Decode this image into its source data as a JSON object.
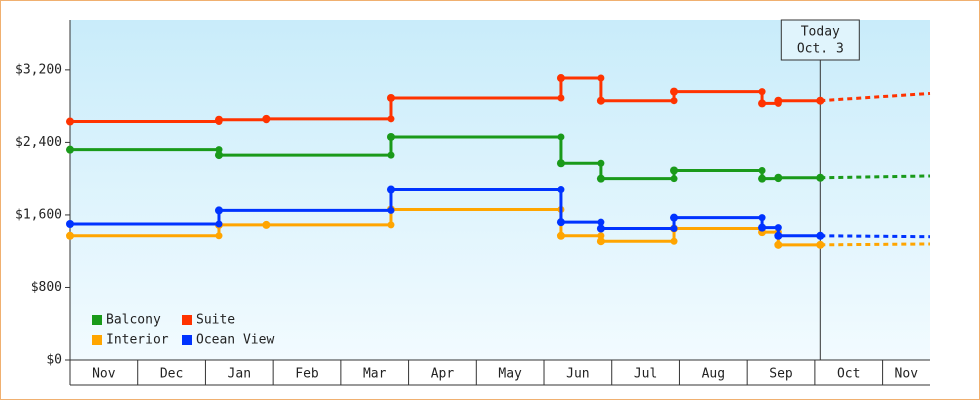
{
  "chart_data": {
    "type": "step-line",
    "ylim": [
      0,
      3750
    ],
    "yticks": [
      {
        "value": 0,
        "label": "$0"
      },
      {
        "value": 800,
        "label": "$800"
      },
      {
        "value": 1600,
        "label": "$1,600"
      },
      {
        "value": 2400,
        "label": "$2,400"
      },
      {
        "value": 3200,
        "label": "$3,200"
      }
    ],
    "xlim": [
      0,
      12.7
    ],
    "xdividers": [
      0,
      1,
      2,
      3,
      4,
      5,
      6,
      7,
      8,
      9,
      10,
      11,
      12
    ],
    "xticks": [
      {
        "value": 0.5,
        "label": "Nov"
      },
      {
        "value": 1.5,
        "label": "Dec"
      },
      {
        "value": 2.5,
        "label": "Jan"
      },
      {
        "value": 3.5,
        "label": "Feb"
      },
      {
        "value": 4.5,
        "label": "Mar"
      },
      {
        "value": 5.5,
        "label": "Apr"
      },
      {
        "value": 6.5,
        "label": "May"
      },
      {
        "value": 7.5,
        "label": "Jun"
      },
      {
        "value": 8.5,
        "label": "Jul"
      },
      {
        "value": 9.5,
        "label": "Aug"
      },
      {
        "value": 10.5,
        "label": "Sep"
      },
      {
        "value": 11.5,
        "label": "Oct"
      },
      {
        "value": 12.35,
        "label": "Nov"
      }
    ],
    "today": {
      "x": 11.08,
      "lines": [
        "Today",
        "Oct. 3"
      ]
    },
    "series": [
      {
        "name": "Balcony",
        "color": "#1a9a1a",
        "x": [
          0,
          2.2,
          4.74,
          7.25,
          7.84,
          8.92,
          10.22,
          10.46,
          11.08
        ],
        "values": [
          2320,
          2260,
          2460,
          2170,
          2000,
          2090,
          2000,
          2010,
          2010
        ],
        "forecast": {
          "x": [
            11.08,
            12.7
          ],
          "values": [
            2010,
            2030
          ]
        }
      },
      {
        "name": "Suite",
        "color": "#ff3300",
        "x": [
          0,
          2.2,
          2.9,
          4.74,
          7.25,
          7.84,
          8.92,
          10.22,
          10.46,
          11.08
        ],
        "values": [
          2630,
          2650,
          2660,
          2890,
          3110,
          2860,
          2960,
          2830,
          2860,
          2860
        ],
        "forecast": {
          "x": [
            11.08,
            12.7
          ],
          "values": [
            2860,
            2940
          ]
        }
      },
      {
        "name": "Interior",
        "color": "#ffa500",
        "x": [
          0,
          2.2,
          2.9,
          4.74,
          7.25,
          7.84,
          8.92,
          10.22,
          10.46,
          11.08
        ],
        "values": [
          1370,
          1490,
          1490,
          1660,
          1370,
          1310,
          1450,
          1410,
          1270,
          1270
        ],
        "forecast": {
          "x": [
            11.08,
            12.7
          ],
          "values": [
            1270,
            1280
          ]
        }
      },
      {
        "name": "Ocean View",
        "color": "#0033ff",
        "x": [
          0,
          2.2,
          4.74,
          7.25,
          7.84,
          8.92,
          10.22,
          10.46,
          11.08
        ],
        "values": [
          1500,
          1650,
          1880,
          1520,
          1450,
          1570,
          1460,
          1370,
          1370
        ],
        "forecast": {
          "x": [
            11.08,
            12.7
          ],
          "values": [
            1370,
            1360
          ]
        }
      }
    ]
  }
}
